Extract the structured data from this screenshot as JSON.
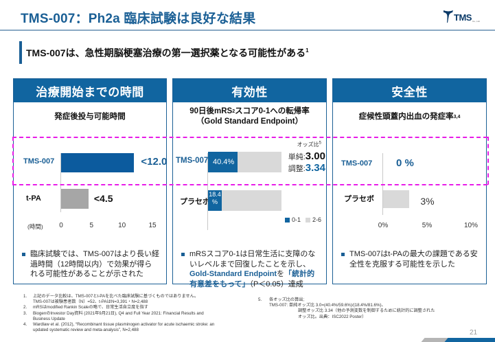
{
  "header": {
    "title": "TMS-007：Ph2a 臨床試験は良好な結果",
    "logo_text": "TMS",
    "logo_sub": "Co., Ltd."
  },
  "subtitle": {
    "text": "TMS-007は、急性期脳梗塞治療の第一選択薬となる可能性がある",
    "sup": "1"
  },
  "colors": {
    "brand_blue": "#1165a0",
    "grey_bar": "#a6a6a6",
    "light_grey_bar": "#d9d9d9",
    "highlight_dash": "#e81be8"
  },
  "panels": [
    {
      "header": "治療開始までの時間",
      "metric": "発症後投与可能時間",
      "rows": [
        {
          "label": "TMS-007",
          "value": 12.0,
          "value_label": "<12.0"
        },
        {
          "label": "t-PA",
          "value": 4.5,
          "value_label": "<4.5"
        }
      ],
      "axis_unit": "(時間)",
      "ticks": [
        "0",
        "5",
        "10",
        "15"
      ],
      "axis_max": 15,
      "bullet": "臨床試験では、TMS-007はより長い経過時間（12時間以内）で効果が得られる可能性があることが示された"
    },
    {
      "header": "有効性",
      "metric_line1": "90日後mRS",
      "metric_sup": "2",
      "metric_line1b": "スコア0-1への転帰率",
      "metric_line2": "（Gold Standard Endpoint）",
      "rows": [
        {
          "label": "TMS-007",
          "value_0_1": 40.4,
          "value_2_6": 59.6,
          "value_label": "40.4%"
        },
        {
          "label": "プラセボ",
          "value_0_1": 18.4,
          "value_2_6": 81.6,
          "value_label": "18.4 %"
        }
      ],
      "odds": {
        "title": "オッズ比",
        "title_sup": "5",
        "simple_label": "単純:",
        "simple_value": "3.00",
        "adjusted_label": "調整:",
        "adjusted_value": "3.34"
      },
      "legend": [
        {
          "label": "0-1",
          "color": "#1165a0"
        },
        {
          "label": "2-6",
          "color": "#d9d9d9"
        }
      ],
      "bullet_plain1": "mRSスコア0-1は日常生活に支障のないレベルまで回復したことを示し、",
      "bullet_hl1": "Gold-Standard Endpoint",
      "bullet_plain2": "を",
      "bullet_hl2": "「統計的有意差をもって」",
      "bullet_plain3": "（P＜0.05）達成"
    },
    {
      "header": "安全性",
      "metric": "症候性頭蓋内出血の発症率",
      "metric_sup": "3,4",
      "rows": [
        {
          "label": "TMS-007",
          "value": 0,
          "value_label": "0 %"
        },
        {
          "label": "プラセボ",
          "value": 3,
          "value_label": "3%"
        }
      ],
      "ticks": [
        "0%",
        "5%",
        "10%"
      ],
      "axis_max": 10,
      "bullet": "TMS-007はt-PAの最大の課題である安全性を克服する可能性を示した"
    }
  ],
  "footnotes_left": [
    {
      "num": "1.",
      "text": "上記のデータ比較は、TMS-007とt-PAを比べた臨床試験に基づくものではありません。",
      "text2": "TMS-007は被験患者数（N）=52、t-PAはN=3,391・N=2,488"
    },
    {
      "num": "2.",
      "text": "mRSはmodified Rankin Scaleの略で、日常生活自立度を指す"
    },
    {
      "num": "3.",
      "text": "BiogenのInvestor Day資料 (2021年9月21日), Q4 and Full Year 2021: Financial Results and",
      "text2": "Business Update"
    },
    {
      "num": "4.",
      "text": "Wardlaw et al. (2012), “Recombinant tissue plasminogen activator for acute ischaemic stroke: an",
      "text2": "updated systematic review and meta-analysis”, N=2,488"
    }
  ],
  "footnote_right": {
    "num": "5.",
    "line1": "各オッズ比の算出;",
    "line2": "TMS-007: 単純オッズ比 3.0=(40.4%/59.6%)/(18.4%/81.6%)、",
    "line3": "調整オッズ比 3.34（他の予測変数を制御するために統計的に調整された",
    "line4": "オッズ比。出典：ISC2022 Poster）"
  },
  "page_number": "21"
}
